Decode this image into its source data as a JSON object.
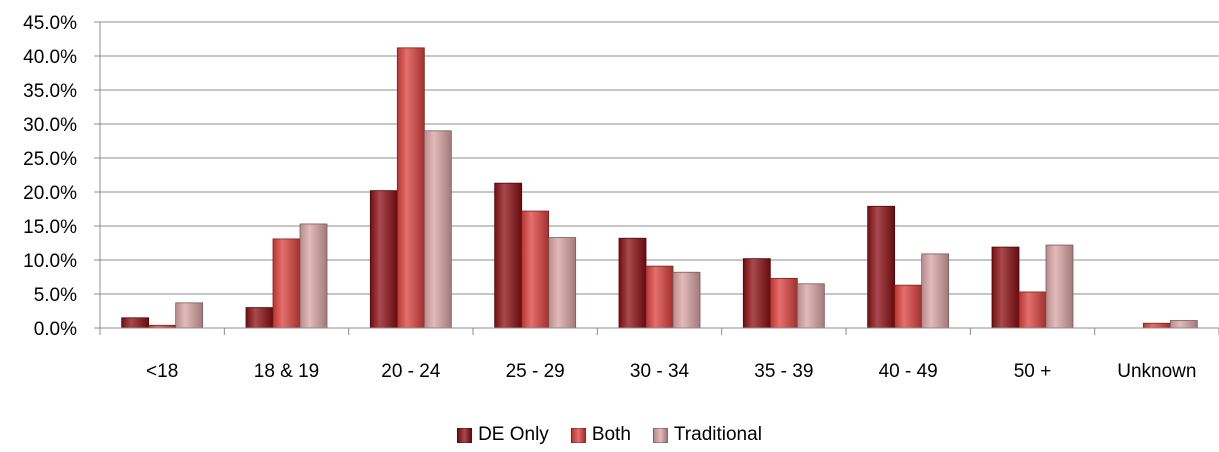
{
  "chart_data": {
    "type": "bar",
    "title": "",
    "xlabel": "",
    "ylabel": "",
    "ylim": [
      0,
      45
    ],
    "y_tick_values": [
      0,
      5,
      10,
      15,
      20,
      25,
      30,
      35,
      40,
      45
    ],
    "y_tick_labels": [
      "0.0%",
      "5.0%",
      "10.0%",
      "15.0%",
      "20.0%",
      "25.0%",
      "30.0%",
      "35.0%",
      "40.0%",
      "45.0%"
    ],
    "grid": true,
    "legend_position": "bottom",
    "categories": [
      "<18",
      "18 & 19",
      "20 - 24",
      "25 - 29",
      "30 - 34",
      "35 - 39",
      "40 - 49",
      "50 +",
      "Unknown"
    ],
    "series": [
      {
        "name": "DE Only",
        "color": "#8b0e12",
        "values": [
          1.5,
          3.0,
          20.2,
          21.3,
          13.2,
          10.2,
          17.9,
          11.9,
          0.0
        ]
      },
      {
        "name": "Both",
        "color": "#d9403b",
        "values": [
          0.4,
          13.1,
          41.2,
          17.2,
          9.1,
          7.3,
          6.3,
          5.3,
          0.7
        ]
      },
      {
        "name": "Traditional",
        "color": "#d8a3a3",
        "values": [
          3.7,
          15.3,
          29.0,
          13.3,
          8.2,
          6.5,
          10.9,
          12.2,
          1.1
        ]
      }
    ]
  }
}
